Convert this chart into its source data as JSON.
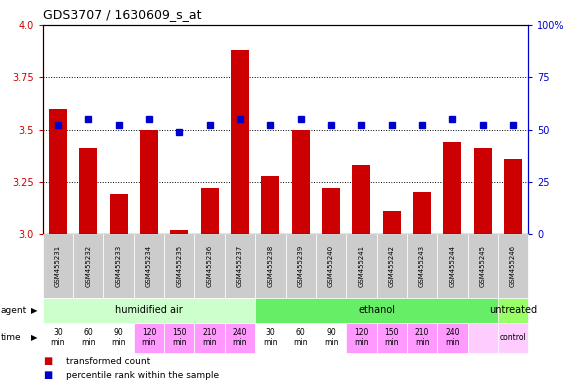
{
  "title": "GDS3707 / 1630609_s_at",
  "samples": [
    "GSM455231",
    "GSM455232",
    "GSM455233",
    "GSM455234",
    "GSM455235",
    "GSM455236",
    "GSM455237",
    "GSM455238",
    "GSM455239",
    "GSM455240",
    "GSM455241",
    "GSM455242",
    "GSM455243",
    "GSM455244",
    "GSM455245",
    "GSM455246"
  ],
  "bar_values": [
    3.6,
    3.41,
    3.19,
    3.5,
    3.02,
    3.22,
    3.88,
    3.28,
    3.5,
    3.22,
    3.33,
    3.11,
    3.2,
    3.44,
    3.41,
    3.36
  ],
  "percentile_values": [
    52,
    55,
    52,
    55,
    49,
    52,
    55,
    52,
    55,
    52,
    52,
    52,
    52,
    55,
    52,
    52
  ],
  "bar_color": "#cc0000",
  "percentile_color": "#0000cc",
  "ylim_left": [
    3.0,
    4.0
  ],
  "ylim_right": [
    0,
    100
  ],
  "yticks_left": [
    3.0,
    3.25,
    3.5,
    3.75,
    4.0
  ],
  "yticks_right": [
    0,
    25,
    50,
    75,
    100
  ],
  "ytick_right_labels": [
    "0",
    "25",
    "50",
    "75",
    "100%"
  ],
  "agent_groups": [
    {
      "label": "humidified air",
      "start": 0,
      "end": 7,
      "color": "#ccffcc"
    },
    {
      "label": "ethanol",
      "start": 7,
      "end": 15,
      "color": "#66ee66"
    },
    {
      "label": "untreated",
      "start": 15,
      "end": 16,
      "color": "#99ff66"
    }
  ],
  "time_labels": [
    "30\nmin",
    "60\nmin",
    "90\nmin",
    "120\nmin",
    "150\nmin",
    "210\nmin",
    "240\nmin",
    "30\nmin",
    "60\nmin",
    "90\nmin",
    "120\nmin",
    "150\nmin",
    "210\nmin",
    "240\nmin",
    "",
    "control"
  ],
  "time_colors": [
    "#ffffff",
    "#ffffff",
    "#ffffff",
    "#ff99ff",
    "#ff99ff",
    "#ff99ff",
    "#ff99ff",
    "#ffffff",
    "#ffffff",
    "#ffffff",
    "#ff99ff",
    "#ff99ff",
    "#ff99ff",
    "#ff99ff",
    "#ffccff",
    "#ffccff"
  ],
  "legend_bar_label": "transformed count",
  "legend_pct_label": "percentile rank within the sample",
  "background_color": "#ffffff",
  "sample_bg_color": "#cccccc",
  "grid_dotted_ticks": [
    3.25,
    3.5,
    3.75
  ]
}
